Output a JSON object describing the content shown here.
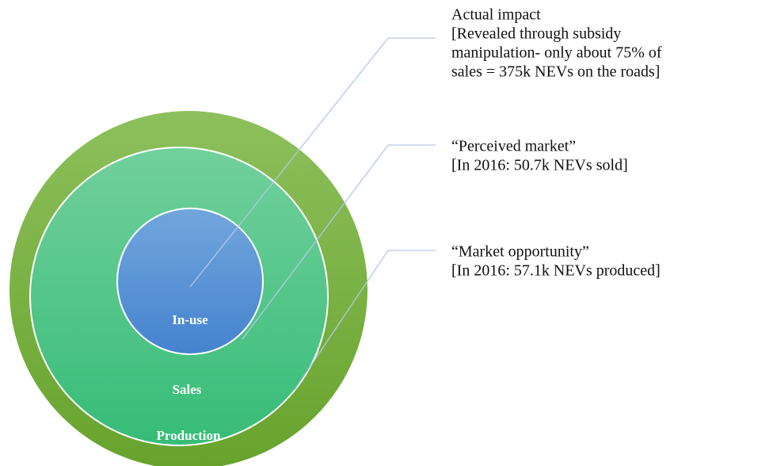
{
  "nodes": [
    {
      "label": "Production"
    },
    {
      "label": "Sales"
    },
    {
      "label": "In-use"
    }
  ],
  "callouts": [
    {
      "lines": [
        "Actual impact",
        "[Revealed through subsidy",
        "manipulation- only about 75% of",
        "sales = 375k NEVs on the roads]"
      ]
    },
    {
      "lines": [
        "“Perceived market”",
        "[In 2016: 50.7k NEVs sold]"
      ]
    },
    {
      "lines": [
        "“Market opportunity”",
        "[In 2016: 57.1k NEVs produced]"
      ]
    }
  ]
}
